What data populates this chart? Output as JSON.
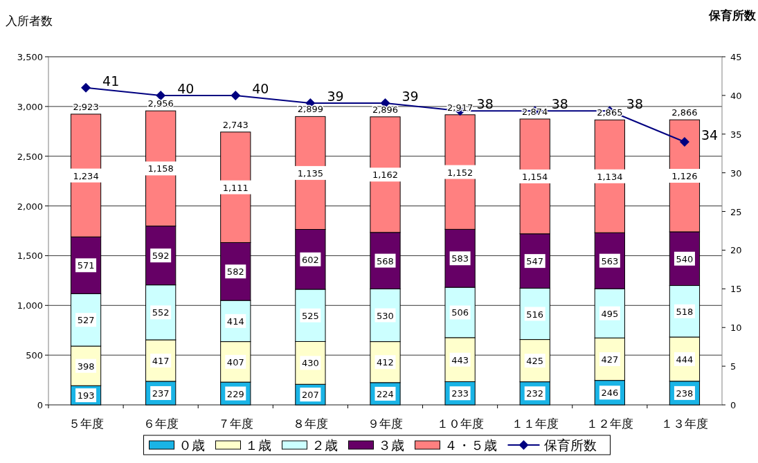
{
  "chart_data": {
    "type": "bar",
    "stacked": true,
    "ylabel": "入所者数",
    "y2label": "保育所数",
    "categories": [
      "５年度",
      "６年度",
      "７年度",
      "８年度",
      "９年度",
      "１０年度",
      "１１年度",
      "１２年度",
      "１３年度"
    ],
    "series": [
      {
        "name": "０歳",
        "color": "#1ab4e6",
        "values": [
          193,
          237,
          229,
          207,
          224,
          233,
          232,
          246,
          238
        ]
      },
      {
        "name": "１歳",
        "color": "#ffffcc",
        "values": [
          398,
          417,
          407,
          430,
          412,
          443,
          425,
          427,
          444
        ]
      },
      {
        "name": "２歳",
        "color": "#ccffff",
        "values": [
          527,
          552,
          414,
          525,
          530,
          506,
          516,
          495,
          518
        ]
      },
      {
        "name": "３歳",
        "color": "#660066",
        "values": [
          571,
          592,
          582,
          602,
          568,
          583,
          547,
          563,
          540
        ]
      },
      {
        "name": "４・５歳",
        "color": "#ff8080",
        "values": [
          1234,
          1158,
          1111,
          1135,
          1162,
          1152,
          1154,
          1134,
          1126
        ],
        "value_labels": [
          "1,234",
          "1,158",
          "1,111",
          "1,135",
          "1,162",
          "1,152",
          "1,154",
          "1,134",
          "1,126"
        ]
      },
      {
        "name": "保育所数",
        "type": "line",
        "axis": "y2",
        "color": "#000080",
        "marker": "diamond",
        "values": [
          41,
          40,
          40,
          39,
          39,
          38,
          38,
          38,
          34
        ]
      }
    ],
    "totals": [
      "2,923",
      "2,956",
      "2,743",
      "2,899",
      "2,896",
      "2,917",
      "2,874",
      "2,865",
      "2,866"
    ],
    "data_labels": true,
    "ylim": [
      0,
      3500
    ],
    "yticks": [
      0,
      {
        "value": 500,
        "label": "500"
      },
      {
        "value": 1000,
        "label": "1,000"
      },
      {
        "value": 1500,
        "label": "1,500"
      },
      {
        "value": 2000,
        "label": "2,000"
      },
      {
        "value": 2500,
        "label": "2,500"
      },
      {
        "value": 3000,
        "label": "3,000"
      },
      {
        "value": 3500,
        "label": "3,500"
      }
    ],
    "y2lim": [
      0,
      45
    ],
    "y2ticks": [
      0,
      5,
      10,
      15,
      20,
      25,
      30,
      35,
      40,
      45
    ],
    "grid": "y",
    "legend": "bottom"
  }
}
